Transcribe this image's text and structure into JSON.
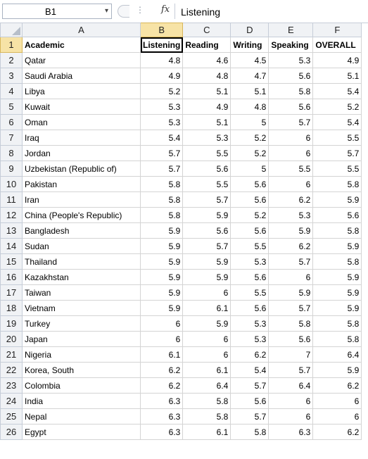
{
  "formula_bar": {
    "name_box": "B1",
    "fx_label": "fx",
    "formula": "Listening"
  },
  "sheet": {
    "columns": [
      "A",
      "B",
      "C",
      "D",
      "E",
      "F"
    ],
    "header": [
      "Academic",
      "Listening",
      "Reading",
      "Writing",
      "Speaking",
      "OVERALL"
    ],
    "rows": [
      [
        "Qatar",
        "4.8",
        "4.6",
        "4.5",
        "5.3",
        "4.9"
      ],
      [
        "Saudi Arabia",
        "4.9",
        "4.8",
        "4.7",
        "5.6",
        "5.1"
      ],
      [
        "Libya",
        "5.2",
        "5.1",
        "5.1",
        "5.8",
        "5.4"
      ],
      [
        "Kuwait",
        "5.3",
        "4.9",
        "4.8",
        "5.6",
        "5.2"
      ],
      [
        "Oman",
        "5.3",
        "5.1",
        "5",
        "5.7",
        "5.4"
      ],
      [
        "Iraq",
        "5.4",
        "5.3",
        "5.2",
        "6",
        "5.5"
      ],
      [
        "Jordan",
        "5.7",
        "5.5",
        "5.2",
        "6",
        "5.7"
      ],
      [
        "Uzbekistan (Republic of)",
        "5.7",
        "5.6",
        "5",
        "5.5",
        "5.5"
      ],
      [
        "Pakistan",
        "5.8",
        "5.5",
        "5.6",
        "6",
        "5.8"
      ],
      [
        "Iran",
        "5.8",
        "5.7",
        "5.6",
        "6.2",
        "5.9"
      ],
      [
        "China (People's Republic)",
        "5.8",
        "5.9",
        "5.2",
        "5.3",
        "5.6"
      ],
      [
        "Bangladesh",
        "5.9",
        "5.6",
        "5.6",
        "5.9",
        "5.8"
      ],
      [
        "Sudan",
        "5.9",
        "5.7",
        "5.5",
        "6.2",
        "5.9"
      ],
      [
        "Thailand",
        "5.9",
        "5.9",
        "5.3",
        "5.7",
        "5.8"
      ],
      [
        "Kazakhstan",
        "5.9",
        "5.9",
        "5.6",
        "6",
        "5.9"
      ],
      [
        "Taiwan",
        "5.9",
        "6",
        "5.5",
        "5.9",
        "5.9"
      ],
      [
        "Vietnam",
        "5.9",
        "6.1",
        "5.6",
        "5.7",
        "5.9"
      ],
      [
        "Turkey",
        "6",
        "5.9",
        "5.3",
        "5.8",
        "5.8"
      ],
      [
        "Japan",
        "6",
        "6",
        "5.3",
        "5.6",
        "5.8"
      ],
      [
        "Nigeria",
        "6.1",
        "6",
        "6.2",
        "7",
        "6.4"
      ],
      [
        "Korea, South",
        "6.2",
        "6.1",
        "5.4",
        "5.7",
        "5.9"
      ],
      [
        "Colombia",
        "6.2",
        "6.4",
        "5.7",
        "6.4",
        "6.2"
      ],
      [
        "India",
        "6.3",
        "5.8",
        "5.6",
        "6",
        "6"
      ],
      [
        "Nepal",
        "6.3",
        "5.8",
        "5.7",
        "6",
        "6"
      ],
      [
        "Egypt",
        "6.3",
        "6.1",
        "5.8",
        "6.3",
        "6.2"
      ]
    ]
  }
}
